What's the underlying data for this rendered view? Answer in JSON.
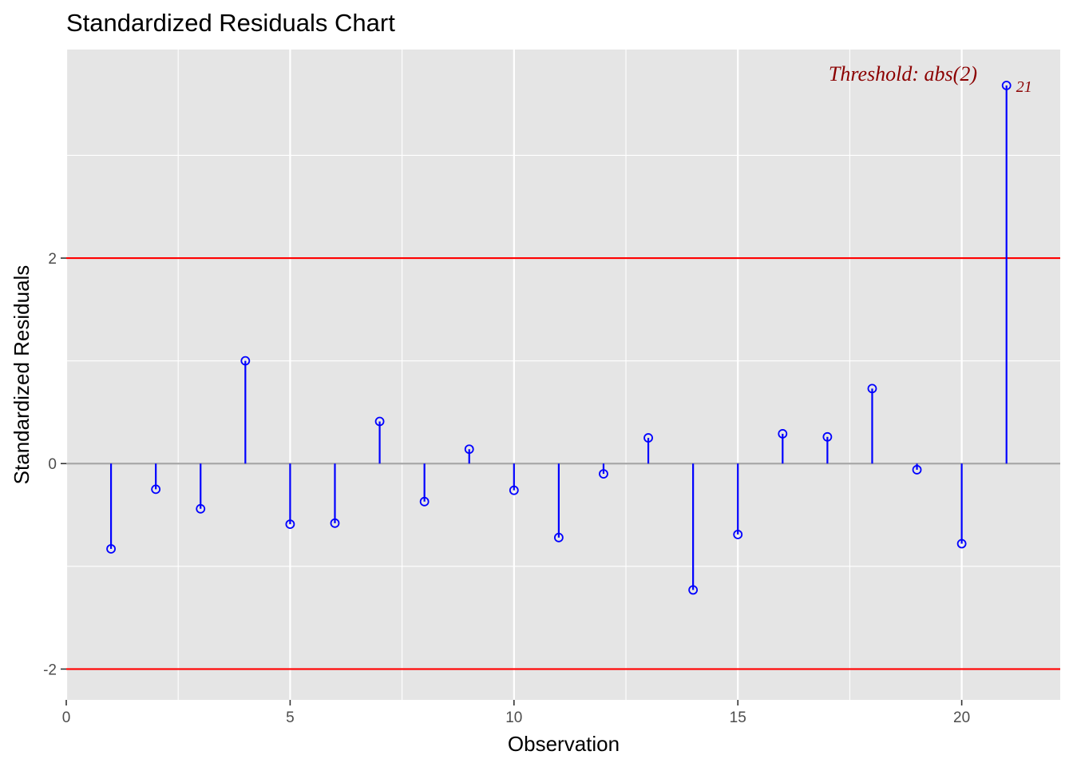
{
  "chart_data": {
    "type": "scatter",
    "style": "lollipop",
    "title": "Standardized Residuals Chart",
    "xlabel": "Observation",
    "ylabel": "Standardized Residuals",
    "xlim": [
      0,
      22.2
    ],
    "ylim": [
      -2.3,
      4.03
    ],
    "x_ticks": [
      0,
      5,
      10,
      15,
      20
    ],
    "y_ticks": [
      -2,
      0,
      2
    ],
    "x_minor_gridlines": [
      2.5,
      7.5,
      12.5,
      17.5
    ],
    "y_minor_gridlines": [
      -1,
      1,
      3
    ],
    "grid": true,
    "legend": "none",
    "colors": {
      "panel_background": "#e5e5e5",
      "grid": "#ffffff",
      "series": "#0000ff",
      "threshold": "#ff0000",
      "zero_line": "#a6a6a6",
      "annotation": "#8b0000",
      "tick_text": "#4d4d4d"
    },
    "threshold_lines": [
      2,
      -2
    ],
    "zero_line": 0,
    "annotation": "Threshold: abs(2)",
    "series": [
      {
        "x": [
          1,
          2,
          3,
          4,
          5,
          6,
          7,
          8,
          9,
          10,
          11,
          12,
          13,
          14,
          15,
          16,
          17,
          18,
          19,
          20,
          21
        ],
        "values": [
          -0.83,
          -0.25,
          -0.44,
          1.0,
          -0.59,
          -0.58,
          0.41,
          -0.37,
          0.14,
          -0.26,
          -0.72,
          -0.1,
          0.25,
          -1.23,
          -0.69,
          0.29,
          0.26,
          0.73,
          -0.06,
          -0.78,
          3.68
        ]
      }
    ],
    "point_labels": [
      {
        "x": 21,
        "label": "21"
      }
    ]
  }
}
